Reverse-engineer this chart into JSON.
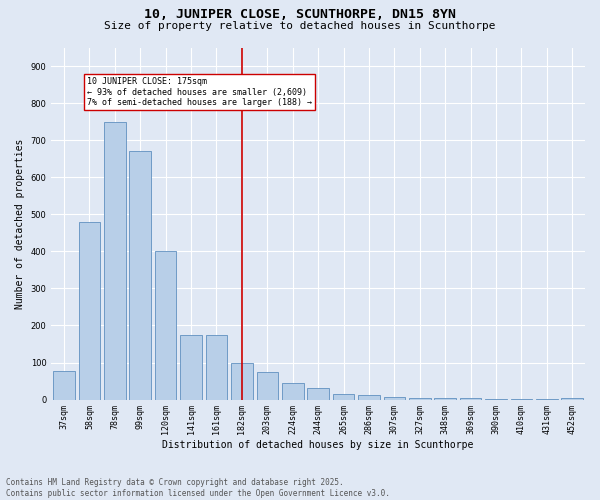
{
  "title": "10, JUNIPER CLOSE, SCUNTHORPE, DN15 8YN",
  "subtitle": "Size of property relative to detached houses in Scunthorpe",
  "xlabel": "Distribution of detached houses by size in Scunthorpe",
  "ylabel": "Number of detached properties",
  "background_color": "#e0e8f4",
  "bar_color": "#b8cfe8",
  "bar_edge_color": "#6090c0",
  "categories": [
    "37sqm",
    "58sqm",
    "78sqm",
    "99sqm",
    "120sqm",
    "141sqm",
    "161sqm",
    "182sqm",
    "203sqm",
    "224sqm",
    "244sqm",
    "265sqm",
    "286sqm",
    "307sqm",
    "327sqm",
    "348sqm",
    "369sqm",
    "390sqm",
    "410sqm",
    "431sqm",
    "452sqm"
  ],
  "values": [
    78,
    480,
    750,
    670,
    400,
    175,
    175,
    100,
    75,
    45,
    30,
    15,
    12,
    8,
    5,
    3,
    3,
    2,
    1,
    1,
    5
  ],
  "vline_x": 7,
  "vline_color": "#cc0000",
  "annotation_text": "10 JUNIPER CLOSE: 175sqm\n← 93% of detached houses are smaller (2,609)\n7% of semi-detached houses are larger (188) →",
  "annotation_box_color": "#ffffff",
  "annotation_box_edge": "#cc0000",
  "ylim": [
    0,
    950
  ],
  "yticks": [
    0,
    100,
    200,
    300,
    400,
    500,
    600,
    700,
    800,
    900
  ],
  "footnote": "Contains HM Land Registry data © Crown copyright and database right 2025.\nContains public sector information licensed under the Open Government Licence v3.0.",
  "title_fontsize": 9.5,
  "subtitle_fontsize": 8,
  "label_fontsize": 7,
  "tick_fontsize": 6,
  "annotation_fontsize": 6,
  "footnote_fontsize": 5.5
}
